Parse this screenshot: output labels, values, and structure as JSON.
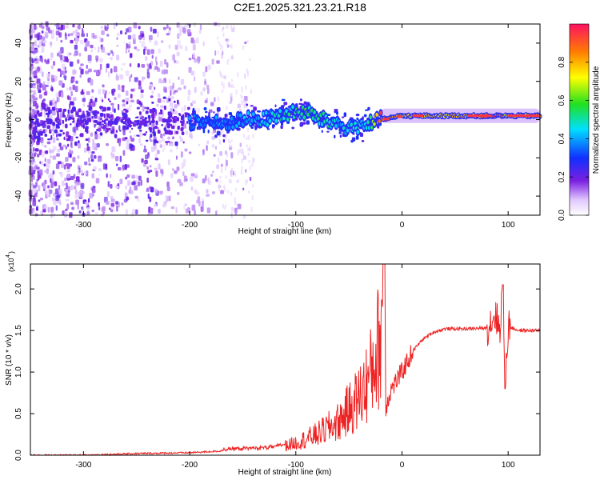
{
  "title": "C2E1.2025.321.23.21.R18",
  "chart_data": [
    {
      "type": "heatmap",
      "xlabel": "Height of straight line (km)",
      "ylabel": "Frequency (Hz)",
      "xlim": [
        -350,
        130
      ],
      "ylim": [
        -50,
        50
      ],
      "x_ticks": [
        -300,
        -200,
        -100,
        0,
        100
      ],
      "y_ticks": [
        -40,
        -20,
        0,
        20,
        40
      ],
      "colorbar": {
        "label": "Normalized spectral amplitude",
        "range": [
          0.0,
          1.0
        ],
        "ticks": [
          0.0,
          0.2,
          0.4,
          0.6,
          0.8
        ],
        "tick_labels": [
          "0.0",
          "0.2",
          "0.4",
          "0.6",
          "0.8"
        ],
        "colormap": "rainbow"
      },
      "ridge": {
        "x": [
          -200,
          -180,
          -170,
          -160,
          -150,
          -130,
          -110,
          -90,
          -80,
          -70,
          -60,
          -50,
          -40,
          -30,
          -20,
          0,
          20,
          60,
          90,
          100,
          130
        ],
        "y": [
          -1,
          -1,
          -3,
          -1,
          0,
          0,
          3,
          4,
          1,
          -1,
          -2,
          -5,
          -3,
          -2,
          0,
          2,
          2,
          2,
          2,
          2,
          2
        ],
        "amplitude": [
          0.35,
          0.35,
          0.4,
          0.35,
          0.4,
          0.45,
          0.5,
          0.55,
          0.5,
          0.5,
          0.45,
          0.5,
          0.45,
          0.5,
          0.9,
          0.8,
          0.75,
          0.8,
          0.9,
          0.75,
          0.8
        ]
      }
    },
    {
      "type": "line",
      "xlabel": "Height of straight line (km)",
      "ylabel": "SNR (10 * v/v)",
      "scale_note": "(x10",
      "scale_exponent": "4",
      "xlim": [
        -350,
        130
      ],
      "ylim": [
        0,
        2.3
      ],
      "x_ticks": [
        -300,
        -200,
        -100,
        0,
        100
      ],
      "y_ticks": [
        0.0,
        0.5,
        1.0,
        1.5,
        2.0
      ],
      "y_tick_labels": [
        "0.0",
        "0.5",
        "1.0",
        "1.5",
        "2.0"
      ],
      "color": "#ee2222",
      "series": [
        {
          "x": [
            -350,
            -300,
            -250,
            -200,
            -170,
            -150,
            -120,
            -100,
            -80,
            -60,
            -50,
            -40,
            -30,
            -25,
            -20,
            -17,
            -15,
            -10,
            0,
            10,
            20,
            30,
            40,
            60,
            80,
            88,
            92,
            95,
            97,
            100,
            110,
            130
          ],
          "y": [
            0.0,
            0.0,
            0.02,
            0.03,
            0.05,
            0.06,
            0.08,
            0.15,
            0.25,
            0.4,
            0.55,
            0.7,
            0.95,
            1.2,
            1.4,
            2.3,
            0.6,
            0.8,
            1.0,
            1.25,
            1.4,
            1.48,
            1.52,
            1.52,
            1.53,
            1.7,
            1.5,
            2.05,
            0.85,
            1.55,
            1.5,
            1.5
          ]
        }
      ]
    }
  ]
}
